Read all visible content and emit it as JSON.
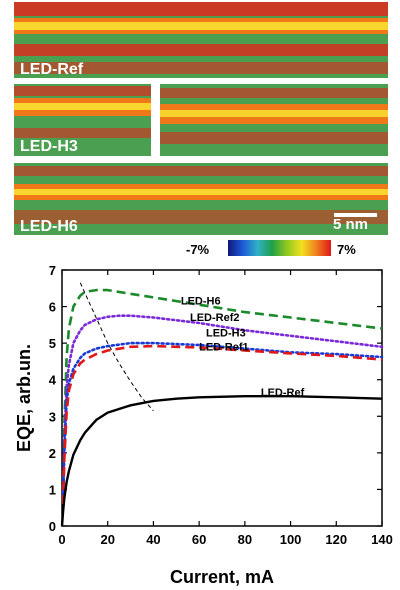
{
  "strain_maps": {
    "panels": [
      {
        "label": "LED-Ref"
      },
      {
        "label": "LED-H3"
      },
      {
        "label": "LED-H6"
      }
    ],
    "scale_bar_label": "5 nm",
    "colorbar": {
      "min_label": "-7%",
      "max_label": "7%",
      "colors": [
        "#10187a",
        "#1e5ad8",
        "#30b0c8",
        "#1fa048",
        "#90c820",
        "#f0e020",
        "#f08020",
        "#e01818"
      ]
    },
    "map_colors": {
      "green": "#4aa050",
      "red": "#e0281c",
      "orange": "#f07818",
      "yellow": "#f8e030"
    }
  },
  "chart_data": {
    "type": "line",
    "xlabel": "Current, mA",
    "ylabel": "EQE, arb.un.",
    "xlim": [
      0,
      140
    ],
    "ylim": [
      0,
      7
    ],
    "xticks": [
      "0",
      "20",
      "40",
      "60",
      "80",
      "100",
      "120",
      "140"
    ],
    "yticks": [
      "0",
      "1",
      "2",
      "3",
      "4",
      "5",
      "6",
      "7"
    ],
    "series": [
      {
        "name": "LED-H6",
        "color": "#1a8a2a",
        "style": "dashed",
        "x": [
          0.5,
          1,
          2,
          3,
          5,
          8,
          10,
          15,
          20,
          30,
          40,
          60,
          80,
          100,
          120,
          140
        ],
        "y": [
          0.9,
          2.7,
          4.6,
          5.4,
          6.0,
          6.3,
          6.4,
          6.45,
          6.45,
          6.35,
          6.25,
          6.05,
          5.85,
          5.7,
          5.55,
          5.4
        ]
      },
      {
        "name": "LED-Ref2",
        "color": "#7a2ad8",
        "style": "dotted",
        "x": [
          0.5,
          1,
          2,
          3,
          5,
          8,
          10,
          15,
          20,
          25,
          30,
          40,
          60,
          80,
          100,
          120,
          140
        ],
        "y": [
          0.8,
          2.3,
          3.8,
          4.4,
          5.0,
          5.35,
          5.5,
          5.65,
          5.72,
          5.75,
          5.75,
          5.7,
          5.55,
          5.35,
          5.2,
          5.05,
          4.9
        ]
      },
      {
        "name": "LED-H3",
        "color": "#1a3ad8",
        "style": "dotted",
        "x": [
          0.5,
          1,
          2,
          3,
          5,
          8,
          10,
          15,
          20,
          30,
          40,
          60,
          80,
          100,
          120,
          140
        ],
        "y": [
          0.7,
          2.0,
          3.4,
          3.9,
          4.3,
          4.6,
          4.72,
          4.85,
          4.92,
          5.0,
          5.0,
          4.95,
          4.85,
          4.75,
          4.7,
          4.62
        ]
      },
      {
        "name": "LED-Ref1",
        "color": "#e01818",
        "style": "dashed",
        "x": [
          0.5,
          1,
          2,
          3,
          5,
          8,
          10,
          15,
          20,
          30,
          40,
          60,
          80,
          100,
          120,
          140
        ],
        "y": [
          0.6,
          1.8,
          3.1,
          3.7,
          4.15,
          4.45,
          4.55,
          4.7,
          4.8,
          4.9,
          4.92,
          4.88,
          4.8,
          4.72,
          4.65,
          4.55
        ]
      },
      {
        "name": "LED-Ref",
        "color": "#000000",
        "style": "solid",
        "x": [
          0,
          0.5,
          1,
          2,
          3,
          5,
          8,
          10,
          15,
          20,
          30,
          40,
          50,
          60,
          80,
          100,
          120,
          140
        ],
        "y": [
          0,
          0.4,
          0.75,
          1.2,
          1.5,
          1.95,
          2.35,
          2.55,
          2.9,
          3.1,
          3.3,
          3.42,
          3.48,
          3.52,
          3.55,
          3.55,
          3.52,
          3.48
        ]
      }
    ],
    "trend_line": {
      "style": "thin-dashed",
      "color": "#000000",
      "x": [
        8,
        12,
        16,
        20,
        25,
        30,
        35,
        40
      ],
      "y": [
        6.65,
        6.1,
        5.55,
        5.0,
        4.45,
        3.95,
        3.5,
        3.15
      ]
    },
    "series_label_positions": [
      {
        "name": "LED-H6",
        "x": 52,
        "y": 6.05
      },
      {
        "name": "LED-Ref2",
        "x": 56,
        "y": 5.6
      },
      {
        "name": "LED-H3",
        "x": 63,
        "y": 5.18
      },
      {
        "name": "LED-Ref1",
        "x": 60,
        "y": 4.8
      },
      {
        "name": "LED-Ref",
        "x": 87,
        "y": 3.55
      }
    ],
    "grid": false
  }
}
